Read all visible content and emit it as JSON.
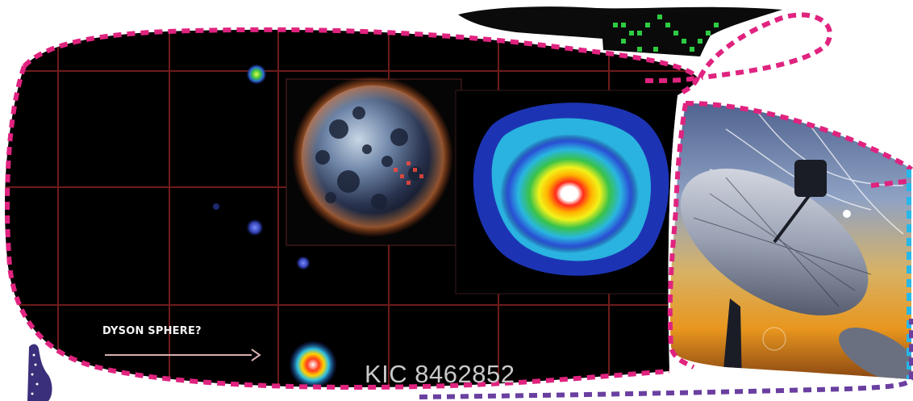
{
  "collage": {
    "arrow_label": "DYSON SPHERE?",
    "star_label": "KIC 8462852"
  },
  "colors": {
    "blob_outline": "#e0237f",
    "cyan_outline": "#27b7e8",
    "purple_outline": "#6a3fa0",
    "grid_line": "#7a1e1e",
    "space_background": "#000000"
  },
  "icons": {
    "planet": "cratered-planet-image",
    "heatmap": "infrared-star-heatmap",
    "telescope": "radio-telescope-dish-image",
    "matrix": "green-pixel-grid",
    "bottle": "dotted-bottle-shape"
  }
}
